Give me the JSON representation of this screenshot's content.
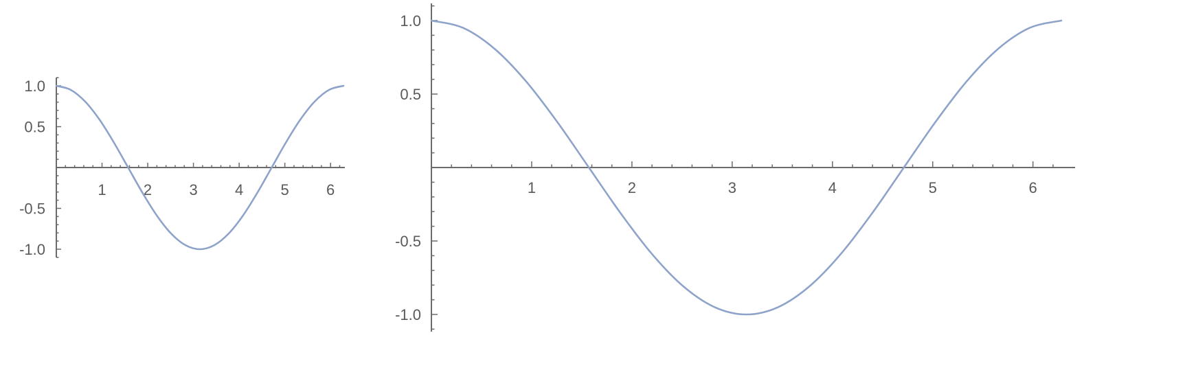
{
  "chart_data": [
    {
      "type": "line",
      "title": "",
      "xlabel": "",
      "ylabel": "",
      "xlim": [
        0,
        6.2832
      ],
      "ylim": [
        -1.0,
        1.0
      ],
      "grid": false,
      "x_ticks": [
        1,
        2,
        3,
        4,
        5,
        6
      ],
      "x_tick_labels": [
        "1",
        "2",
        "3",
        "4",
        "5",
        "6"
      ],
      "y_ticks": [
        -1.0,
        -0.5,
        0.5,
        1.0
      ],
      "y_tick_labels": [
        "-1.0",
        "-0.5",
        "0.5",
        "1.0"
      ],
      "series": [
        {
          "color": "#8ea3c9",
          "x": [
            0,
            0.3142,
            0.6283,
            0.9425,
            1.2566,
            1.5708,
            1.885,
            2.1991,
            2.5133,
            2.8274,
            3.1416,
            3.4558,
            3.7699,
            4.0841,
            4.3982,
            4.7124,
            5.0265,
            5.3407,
            5.6549,
            5.969,
            6.2832
          ],
          "values": [
            1.0,
            0.951,
            0.809,
            0.588,
            0.309,
            0.0,
            -0.309,
            -0.588,
            -0.809,
            -0.951,
            -1.0,
            -0.951,
            -0.809,
            -0.588,
            -0.309,
            0.0,
            0.309,
            0.588,
            0.809,
            0.951,
            1.0
          ]
        }
      ]
    },
    {
      "type": "line",
      "title": "",
      "xlabel": "",
      "ylabel": "",
      "xlim": [
        0,
        6.2832
      ],
      "ylim": [
        -1.0,
        1.0
      ],
      "grid": false,
      "x_ticks": [
        1,
        2,
        3,
        4,
        5,
        6
      ],
      "x_tick_labels": [
        "1",
        "2",
        "3",
        "4",
        "5",
        "6"
      ],
      "y_ticks": [
        -1.0,
        -0.5,
        0.5,
        1.0
      ],
      "y_tick_labels": [
        "-1.0",
        "-0.5",
        "0.5",
        "1.0"
      ],
      "series": [
        {
          "color": "#8ea3c9",
          "x": [
            0,
            0.3142,
            0.6283,
            0.9425,
            1.2566,
            1.5708,
            1.885,
            2.1991,
            2.5133,
            2.8274,
            3.1416,
            3.4558,
            3.7699,
            4.0841,
            4.3982,
            4.7124,
            5.0265,
            5.3407,
            5.6549,
            5.969,
            6.2832
          ],
          "values": [
            1.0,
            0.951,
            0.809,
            0.588,
            0.309,
            0.0,
            -0.309,
            -0.588,
            -0.809,
            -0.951,
            -1.0,
            -0.951,
            -0.809,
            -0.588,
            -0.309,
            0.0,
            0.309,
            0.588,
            0.809,
            0.951,
            1.0
          ]
        }
      ]
    }
  ]
}
